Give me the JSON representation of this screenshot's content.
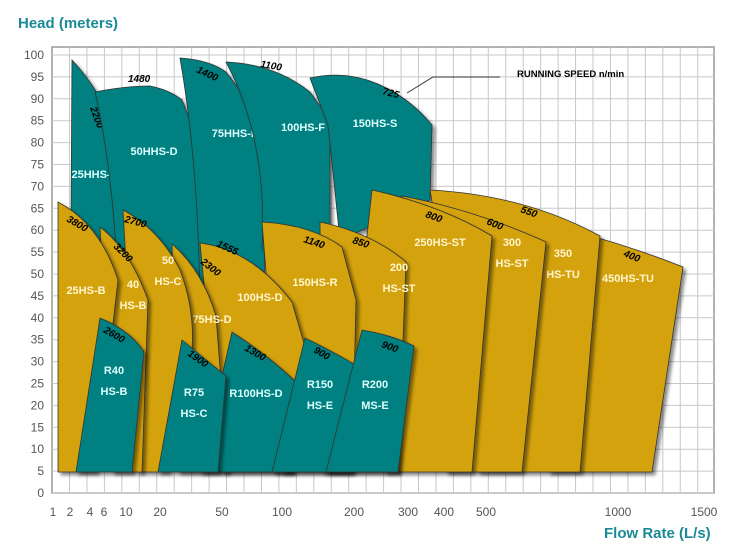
{
  "chart_data": {
    "type": "area",
    "title": "Head (meters)",
    "ylabel": "Head (meters)",
    "xlabel": "Flow Rate (L/s)",
    "ylim": [
      0,
      100
    ],
    "xscale": "log-like",
    "yticks": [
      0,
      5,
      10,
      15,
      20,
      25,
      30,
      35,
      40,
      45,
      50,
      55,
      60,
      65,
      70,
      75,
      80,
      85,
      90,
      95,
      100
    ],
    "xticks": [
      1,
      2,
      4,
      6,
      10,
      20,
      50,
      100,
      200,
      300,
      400,
      500,
      1000,
      1500
    ],
    "annotation": "RUNNING SPEED n/min",
    "colors": {
      "teal": "#008080",
      "gold": "#d4a20a",
      "grid": "#c8c8c8"
    },
    "pumps": [
      {
        "name": [
          "25HHS-C"
        ],
        "type": "teal",
        "speed": "2200"
      },
      {
        "name": [
          "50HHS-D"
        ],
        "type": "teal",
        "speed": "1480"
      },
      {
        "name": [
          "75HHS-E"
        ],
        "type": "teal",
        "speed": "1400"
      },
      {
        "name": [
          "100HS-F"
        ],
        "type": "teal",
        "speed": "1100"
      },
      {
        "name": [
          "150HS-S"
        ],
        "type": "teal",
        "speed": "725"
      },
      {
        "name": [
          "450HS-TU"
        ],
        "type": "gold",
        "speed": "400"
      },
      {
        "name": [
          "350",
          "HS-TU"
        ],
        "type": "gold",
        "speed": "550"
      },
      {
        "name": [
          "300",
          "HS-ST"
        ],
        "type": "gold",
        "speed": "600"
      },
      {
        "name": [
          "250HS-ST"
        ],
        "type": "gold",
        "speed": "800"
      },
      {
        "name": [
          "200",
          "HS-ST"
        ],
        "type": "gold",
        "speed": "850"
      },
      {
        "name": [
          "150HS-R"
        ],
        "type": "gold",
        "speed": "1140"
      },
      {
        "name": [
          "100HS-D"
        ],
        "type": "gold",
        "speed": "1555"
      },
      {
        "name": [
          "75HS-D"
        ],
        "type": "gold",
        "speed": "2300"
      },
      {
        "name": [
          "50",
          "HS-C"
        ],
        "type": "gold",
        "speed": "2700"
      },
      {
        "name": [
          "40",
          "HS-B"
        ],
        "type": "gold",
        "speed": "3200"
      },
      {
        "name": [
          "25HS-B"
        ],
        "type": "gold",
        "speed": "3800"
      },
      {
        "name": [
          "R100HS-D"
        ],
        "type": "teal",
        "speed": "1300"
      },
      {
        "name": [
          "R75",
          "HS-C"
        ],
        "type": "teal",
        "speed": "1900"
      },
      {
        "name": [
          "R40",
          "HS-B"
        ],
        "type": "teal",
        "speed": "2600"
      },
      {
        "name": [
          "R150",
          "HS-E"
        ],
        "type": "teal",
        "speed": "900"
      },
      {
        "name": [
          "R200",
          "MS-E"
        ],
        "type": "teal",
        "speed": "900"
      }
    ]
  }
}
